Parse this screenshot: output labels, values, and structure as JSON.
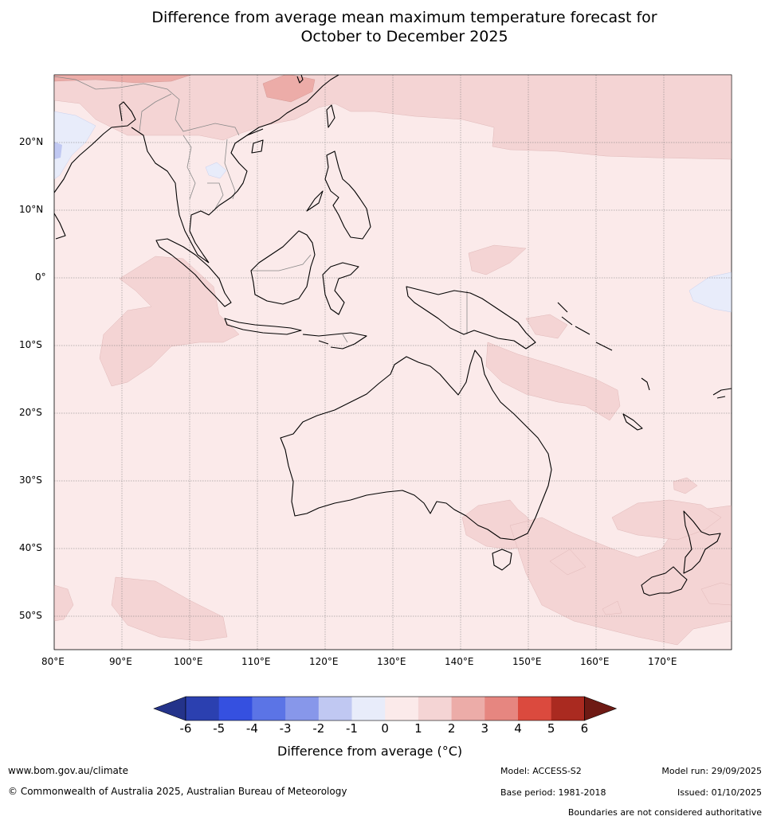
{
  "title": {
    "line1": "Difference from average mean maximum temperature forecast for",
    "line2": "October to December 2025"
  },
  "map": {
    "lat_labels": [
      "20°N",
      "10°N",
      "0°",
      "10°S",
      "20°S",
      "30°S",
      "40°S",
      "50°S"
    ],
    "lon_labels": [
      "80°E",
      "90°E",
      "100°E",
      "110°E",
      "120°E",
      "130°E",
      "140°E",
      "150°E",
      "160°E",
      "170°E"
    ]
  },
  "colorbar": {
    "tick_labels": [
      "-6",
      "-5",
      "-4",
      "-3",
      "-2",
      "-1",
      "0",
      "1",
      "2",
      "3",
      "4",
      "5",
      "6"
    ],
    "colors": [
      "#24338a",
      "#2b40b0",
      "#3550e0",
      "#5b74e6",
      "#8797ea",
      "#c0c8f2",
      "#e8ecfa",
      "#fbeaea",
      "#f4d4d4",
      "#ecaca8",
      "#e68680",
      "#db4a3e",
      "#aa2a20",
      "#6e1a14"
    ],
    "label": "Difference from average (",
    "label_unit": "°C)"
  },
  "footer": {
    "url": "www.bom.gov.au/climate",
    "copyright": "© Commonwealth of Australia 2025, Australian Bureau of Meteorology",
    "model": "Model: ACCESS-S2",
    "base_period": "Base period: 1981-2018",
    "model_run": "Model run: 29/09/2025",
    "issued": "Issued: 01/10/2025",
    "disclaimer": "Boundaries are not considered authoritative"
  }
}
